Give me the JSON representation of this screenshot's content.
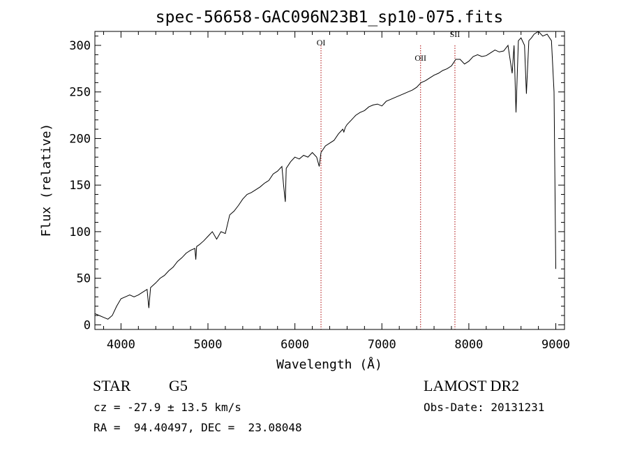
{
  "chart_data": {
    "type": "line",
    "title": "spec-56658-GAC096N23B1_sp10-075.fits",
    "xlabel": "Wavelength (Å)",
    "ylabel": "Flux (relative)",
    "xlim": [
      3700,
      9100
    ],
    "ylim": [
      -5,
      315
    ],
    "xticks": [
      4000,
      5000,
      6000,
      7000,
      8000,
      9000
    ],
    "yticks": [
      0,
      50,
      100,
      150,
      200,
      250,
      300
    ],
    "xtick_labels": [
      "4000",
      "5000",
      "6000",
      "7000",
      "8000",
      "9000"
    ],
    "ytick_labels": [
      "0",
      "50",
      "100",
      "150",
      "200",
      "250",
      "300"
    ],
    "grid": false,
    "series": [
      {
        "x": [
          3700,
          3750,
          3800,
          3850,
          3900,
          3950,
          4000,
          4050,
          4100,
          4150,
          4200,
          4250,
          4300,
          4320,
          4340,
          4400,
          4450,
          4500,
          4550,
          4600,
          4650,
          4700,
          4750,
          4800,
          4850,
          4860,
          4870,
          4900,
          4950,
          5000,
          5050,
          5100,
          5150,
          5200,
          5250,
          5300,
          5350,
          5400,
          5450,
          5500,
          5550,
          5600,
          5650,
          5700,
          5750,
          5800,
          5850,
          5870,
          5890,
          5900,
          5950,
          6000,
          6050,
          6100,
          6150,
          6200,
          6250,
          6280,
          6300,
          6350,
          6400,
          6450,
          6500,
          6550,
          6563,
          6580,
          6600,
          6650,
          6700,
          6750,
          6800,
          6850,
          6900,
          6950,
          7000,
          7050,
          7100,
          7150,
          7200,
          7250,
          7300,
          7350,
          7400,
          7450,
          7500,
          7550,
          7600,
          7650,
          7700,
          7750,
          7800,
          7850,
          7900,
          7950,
          8000,
          8050,
          8100,
          8150,
          8200,
          8250,
          8300,
          8350,
          8400,
          8450,
          8498,
          8520,
          8542,
          8570,
          8600,
          8640,
          8662,
          8690,
          8720,
          8750,
          8800,
          8850,
          8900,
          8950,
          8980,
          9000
        ],
        "y": [
          12,
          10,
          8,
          6,
          10,
          20,
          28,
          30,
          32,
          30,
          32,
          35,
          38,
          18,
          40,
          45,
          50,
          53,
          58,
          62,
          68,
          72,
          77,
          80,
          82,
          70,
          84,
          86,
          90,
          95,
          100,
          92,
          100,
          98,
          118,
          122,
          128,
          135,
          140,
          142,
          145,
          148,
          152,
          155,
          162,
          165,
          170,
          150,
          132,
          168,
          175,
          180,
          178,
          182,
          180,
          185,
          180,
          170,
          185,
          192,
          195,
          198,
          205,
          210,
          207,
          212,
          215,
          220,
          225,
          228,
          230,
          234,
          236,
          237,
          235,
          240,
          242,
          244,
          246,
          248,
          250,
          252,
          255,
          260,
          262,
          265,
          268,
          270,
          273,
          275,
          278,
          285,
          285,
          280,
          283,
          288,
          290,
          288,
          289,
          292,
          295,
          293,
          294,
          300,
          270,
          300,
          228,
          305,
          308,
          300,
          248,
          305,
          308,
          312,
          315,
          310,
          312,
          305,
          250,
          60
        ]
      }
    ],
    "annotations": [
      {
        "label": "OI",
        "x": 6300
      },
      {
        "label": "OII",
        "x": 7445
      },
      {
        "label": "SII",
        "x": 7840
      }
    ],
    "colors": {
      "spectrum": "#000000",
      "marker_line": "#aa0000",
      "axes": "#000000"
    }
  },
  "info": {
    "object_class": "STAR",
    "subclass": "G5",
    "survey": "LAMOST DR2",
    "redshift": "cz = -27.9 ± 13.5 km/s",
    "obs_date": "Obs-Date: 20131231",
    "coords": "RA =  94.40497, DEC =  23.08048"
  }
}
